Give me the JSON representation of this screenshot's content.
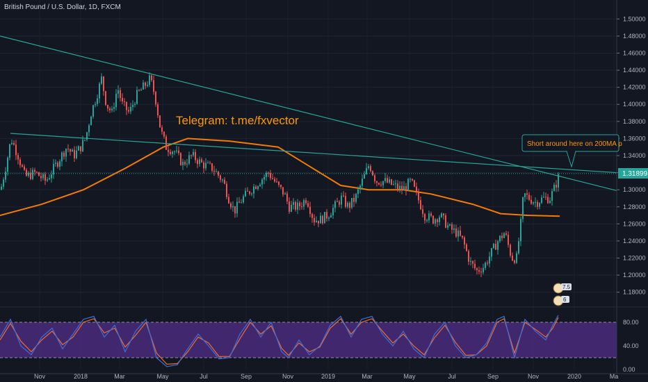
{
  "header": {
    "symbol_title": "British Pound / U.S. Dollar, 1D, FXCM"
  },
  "annotations": {
    "telegram_text": "Telegram: t.me/fxvector",
    "callout_text": "Short around here on 200MA p",
    "price_badge": "1.31899",
    "idea_badge_top": "7.5",
    "idea_badge_bottom": "6"
  },
  "colors": {
    "background": "#131722",
    "up_candle": "#26a69a",
    "down_candle": "#ef5350",
    "moving_average": "#f57c00",
    "trendline": "#26a69a",
    "oscillator_band": "#4a2a7a",
    "oscillator_k": "#3b6fd6",
    "oscillator_d": "#ef6c2e"
  },
  "chart_data": [
    {
      "type": "candlestick",
      "title": "British Pound / U.S. Dollar, 1D, FXCM",
      "x_tick_labels": [
        "Nov",
        "2018",
        "Mar",
        "May",
        "Jul",
        "Sep",
        "Nov",
        "2019",
        "Mar",
        "May",
        "Jul",
        "Sep",
        "Nov",
        "2020",
        "Ma"
      ],
      "y_tick_labels": [
        "1.50000",
        "1.48000",
        "1.46000",
        "1.44000",
        "1.42000",
        "1.40000",
        "1.38000",
        "1.36000",
        "1.34000",
        "1.32000",
        "1.30000",
        "1.28000",
        "1.26000",
        "1.24000",
        "1.22000",
        "1.20000",
        "1.18000"
      ],
      "y_ticks": [
        1.5,
        1.48,
        1.46,
        1.44,
        1.42,
        1.4,
        1.38,
        1.36,
        1.34,
        1.32,
        1.3,
        1.28,
        1.26,
        1.24,
        1.22,
        1.2,
        1.18
      ],
      "ylim": [
        1.17,
        1.51
      ],
      "last_price": 1.31899,
      "close_path": [
        [
          0,
          1.3
        ],
        [
          8,
          1.33
        ],
        [
          15,
          1.36
        ],
        [
          25,
          1.34
        ],
        [
          35,
          1.315
        ],
        [
          50,
          1.32
        ],
        [
          65,
          1.31
        ],
        [
          80,
          1.33
        ],
        [
          95,
          1.35
        ],
        [
          105,
          1.34
        ],
        [
          115,
          1.35
        ],
        [
          122,
          1.36
        ],
        [
          130,
          1.39
        ],
        [
          138,
          1.41
        ],
        [
          145,
          1.43
        ],
        [
          152,
          1.4
        ],
        [
          160,
          1.39
        ],
        [
          168,
          1.42
        ],
        [
          175,
          1.4
        ],
        [
          185,
          1.39
        ],
        [
          195,
          1.41
        ],
        [
          205,
          1.42
        ],
        [
          215,
          1.43
        ],
        [
          222,
          1.41
        ],
        [
          230,
          1.37
        ],
        [
          238,
          1.35
        ],
        [
          250,
          1.345
        ],
        [
          262,
          1.33
        ],
        [
          275,
          1.34
        ],
        [
          290,
          1.33
        ],
        [
          305,
          1.325
        ],
        [
          320,
          1.31
        ],
        [
          328,
          1.29
        ],
        [
          336,
          1.275
        ],
        [
          348,
          1.29
        ],
        [
          360,
          1.3
        ],
        [
          372,
          1.31
        ],
        [
          385,
          1.32
        ],
        [
          398,
          1.305
        ],
        [
          408,
          1.295
        ],
        [
          415,
          1.28
        ],
        [
          428,
          1.28
        ],
        [
          440,
          1.29
        ],
        [
          450,
          1.265
        ],
        [
          460,
          1.265
        ],
        [
          470,
          1.27
        ],
        [
          480,
          1.28
        ],
        [
          490,
          1.29
        ],
        [
          500,
          1.28
        ],
        [
          510,
          1.29
        ],
        [
          520,
          1.31
        ],
        [
          530,
          1.33
        ],
        [
          540,
          1.31
        ],
        [
          552,
          1.31
        ],
        [
          565,
          1.305
        ],
        [
          578,
          1.3
        ],
        [
          590,
          1.31
        ],
        [
          600,
          1.29
        ],
        [
          610,
          1.27
        ],
        [
          622,
          1.265
        ],
        [
          632,
          1.27
        ],
        [
          645,
          1.255
        ],
        [
          655,
          1.25
        ],
        [
          665,
          1.24
        ],
        [
          675,
          1.215
        ],
        [
          685,
          1.205
        ],
        [
          695,
          1.21
        ],
        [
          705,
          1.225
        ],
        [
          715,
          1.24
        ],
        [
          725,
          1.25
        ],
        [
          735,
          1.22
        ],
        [
          742,
          1.22
        ],
        [
          748,
          1.26
        ],
        [
          752,
          1.295
        ],
        [
          760,
          1.29
        ],
        [
          770,
          1.285
        ],
        [
          780,
          1.29
        ],
        [
          790,
          1.29
        ],
        [
          798,
          1.305
        ],
        [
          804,
          1.319
        ]
      ],
      "moving_average_200": [
        [
          0,
          1.27
        ],
        [
          60,
          1.283
        ],
        [
          120,
          1.3
        ],
        [
          180,
          1.325
        ],
        [
          235,
          1.35
        ],
        [
          270,
          1.36
        ],
        [
          330,
          1.357
        ],
        [
          400,
          1.35
        ],
        [
          440,
          1.33
        ],
        [
          490,
          1.305
        ],
        [
          530,
          1.3
        ],
        [
          580,
          1.3
        ],
        [
          620,
          1.295
        ],
        [
          680,
          1.283
        ],
        [
          720,
          1.272
        ],
        [
          760,
          1.27
        ],
        [
          805,
          1.269
        ]
      ],
      "trendlines": [
        [
          [
            0,
            1.48
          ],
          [
            887,
            1.299
          ]
        ],
        [
          [
            15,
            1.366
          ],
          [
            887,
            1.32
          ]
        ]
      ],
      "horizontal_level": 1.31899
    },
    {
      "type": "line",
      "title": "",
      "y_tick_labels": [
        "80.00",
        "40.00",
        "0.00"
      ],
      "y_ticks": [
        80,
        40,
        0
      ],
      "ylim": [
        0,
        100
      ],
      "band": [
        20,
        80
      ],
      "series_k": [
        [
          0,
          55
        ],
        [
          15,
          85
        ],
        [
          30,
          40
        ],
        [
          45,
          25
        ],
        [
          60,
          55
        ],
        [
          75,
          70
        ],
        [
          90,
          35
        ],
        [
          105,
          60
        ],
        [
          120,
          85
        ],
        [
          135,
          90
        ],
        [
          150,
          55
        ],
        [
          165,
          75
        ],
        [
          180,
          30
        ],
        [
          195,
          65
        ],
        [
          210,
          85
        ],
        [
          225,
          20
        ],
        [
          240,
          5
        ],
        [
          255,
          8
        ],
        [
          270,
          35
        ],
        [
          285,
          60
        ],
        [
          300,
          40
        ],
        [
          315,
          18
        ],
        [
          330,
          20
        ],
        [
          345,
          60
        ],
        [
          360,
          85
        ],
        [
          375,
          55
        ],
        [
          390,
          80
        ],
        [
          405,
          30
        ],
        [
          415,
          20
        ],
        [
          430,
          50
        ],
        [
          445,
          25
        ],
        [
          460,
          40
        ],
        [
          475,
          75
        ],
        [
          490,
          90
        ],
        [
          505,
          55
        ],
        [
          520,
          85
        ],
        [
          535,
          90
        ],
        [
          550,
          60
        ],
        [
          565,
          40
        ],
        [
          580,
          65
        ],
        [
          595,
          35
        ],
        [
          610,
          20
        ],
        [
          625,
          60
        ],
        [
          640,
          80
        ],
        [
          655,
          40
        ],
        [
          670,
          20
        ],
        [
          685,
          25
        ],
        [
          700,
          45
        ],
        [
          715,
          85
        ],
        [
          725,
          90
        ],
        [
          740,
          20
        ],
        [
          755,
          85
        ],
        [
          770,
          65
        ],
        [
          785,
          50
        ],
        [
          795,
          75
        ],
        [
          803,
          92
        ]
      ],
      "series_d": [
        [
          0,
          50
        ],
        [
          15,
          78
        ],
        [
          30,
          48
        ],
        [
          45,
          30
        ],
        [
          60,
          50
        ],
        [
          75,
          65
        ],
        [
          90,
          42
        ],
        [
          105,
          55
        ],
        [
          120,
          80
        ],
        [
          135,
          86
        ],
        [
          150,
          62
        ],
        [
          165,
          70
        ],
        [
          180,
          38
        ],
        [
          195,
          58
        ],
        [
          210,
          80
        ],
        [
          225,
          28
        ],
        [
          240,
          9
        ],
        [
          255,
          10
        ],
        [
          270,
          30
        ],
        [
          285,
          55
        ],
        [
          300,
          45
        ],
        [
          315,
          22
        ],
        [
          330,
          22
        ],
        [
          345,
          52
        ],
        [
          360,
          80
        ],
        [
          375,
          60
        ],
        [
          390,
          74
        ],
        [
          405,
          36
        ],
        [
          415,
          24
        ],
        [
          430,
          45
        ],
        [
          445,
          30
        ],
        [
          460,
          38
        ],
        [
          475,
          70
        ],
        [
          490,
          86
        ],
        [
          505,
          60
        ],
        [
          520,
          80
        ],
        [
          535,
          86
        ],
        [
          550,
          65
        ],
        [
          565,
          45
        ],
        [
          580,
          60
        ],
        [
          595,
          40
        ],
        [
          610,
          25
        ],
        [
          625,
          54
        ],
        [
          640,
          75
        ],
        [
          655,
          46
        ],
        [
          670,
          24
        ],
        [
          685,
          25
        ],
        [
          700,
          40
        ],
        [
          715,
          80
        ],
        [
          725,
          86
        ],
        [
          740,
          28
        ],
        [
          755,
          80
        ],
        [
          770,
          68
        ],
        [
          785,
          55
        ],
        [
          795,
          70
        ],
        [
          803,
          88
        ]
      ]
    }
  ]
}
